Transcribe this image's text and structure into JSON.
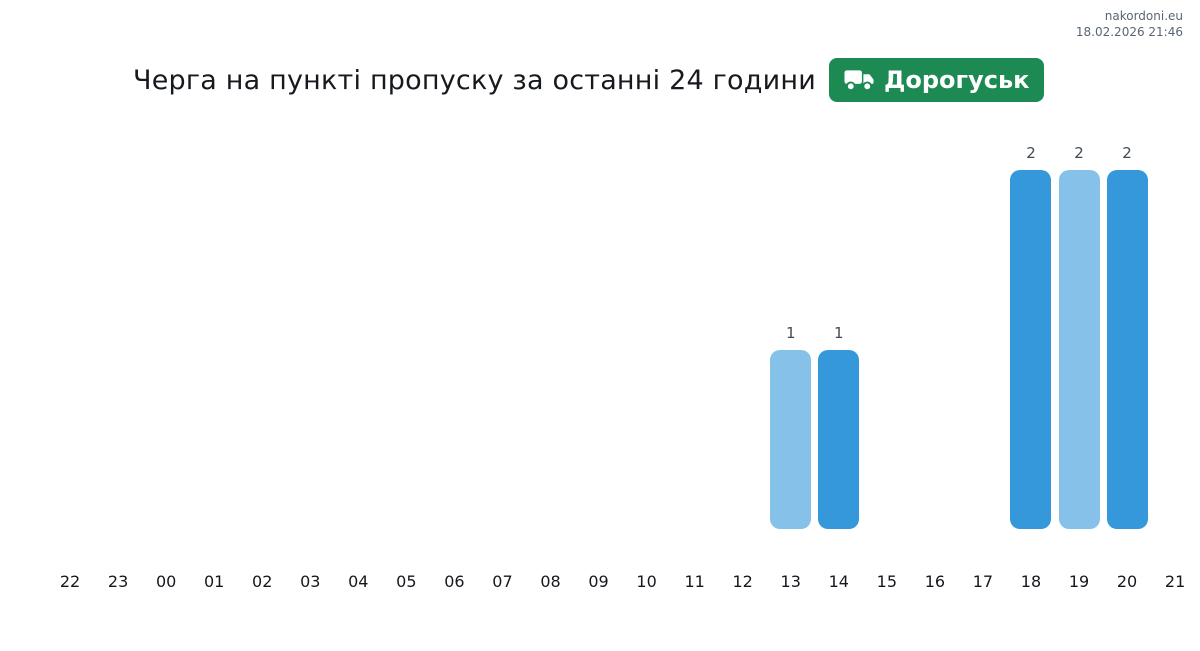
{
  "watermark": {
    "site": "nakordoni.eu",
    "timestamp": "18.02.2026 21:46"
  },
  "header": {
    "title": "Черга на пункті пропуску за останні 24 години",
    "badge": {
      "label": "Дорогуськ",
      "icon": "truck-icon",
      "bg_color": "#1d8a54",
      "text_color": "#ffffff"
    }
  },
  "chart_data": {
    "type": "bar",
    "title": "Черга на пункті пропуску за останні 24 години",
    "xlabel": "",
    "ylabel": "",
    "categories": [
      "22",
      "23",
      "00",
      "01",
      "02",
      "03",
      "04",
      "05",
      "06",
      "07",
      "08",
      "09",
      "10",
      "11",
      "12",
      "13",
      "14",
      "15",
      "16",
      "17",
      "18",
      "19",
      "20",
      "21"
    ],
    "values": [
      0,
      0,
      0,
      0,
      0,
      0,
      0,
      0,
      0,
      0,
      0,
      0,
      0,
      0,
      0,
      1,
      1,
      0,
      0,
      0,
      2,
      2,
      2,
      0
    ],
    "bar_color_even_column": "#3498db",
    "bar_color_odd_column": "#85c1e8",
    "value_labels": true,
    "ylim": [
      0,
      2.17
    ],
    "grid": false,
    "legend": "none",
    "axis_lines": "none"
  }
}
